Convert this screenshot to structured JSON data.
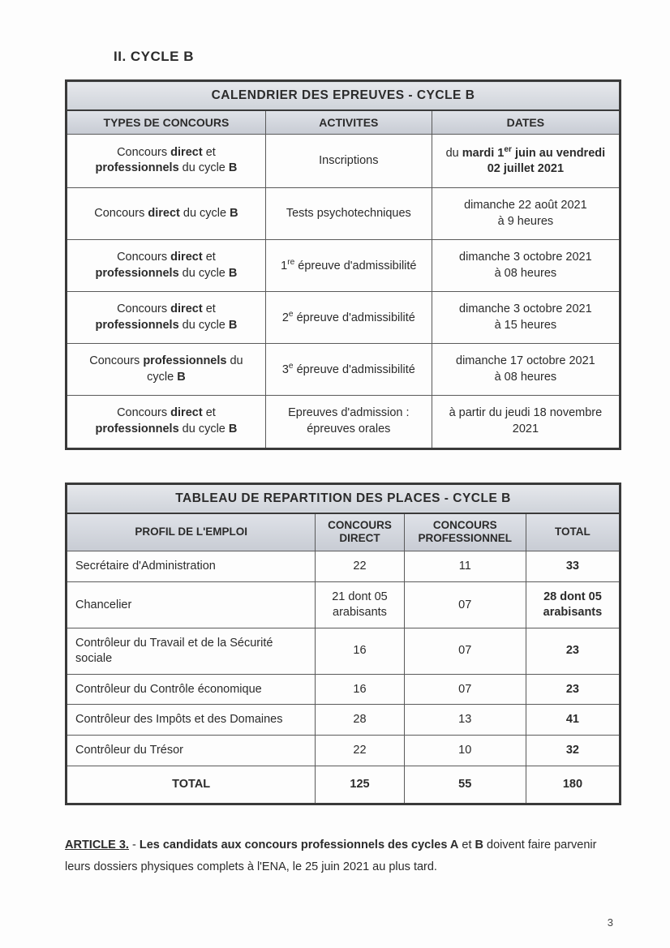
{
  "section_title": "II. CYCLE B",
  "calendar": {
    "title": "CALENDRIER DES EPREUVES - CYCLE B",
    "columns": [
      "TYPES DE CONCOURS",
      "ACTIVITES",
      "DATES"
    ],
    "rows": [
      {
        "type_html": "Concours <b>direct</b> et <b>professionnels</b> du cycle <b>B</b>",
        "activity_html": "Inscriptions",
        "date_html": "du <b>mardi 1<sup>er</sup> juin au vendredi 02 juillet 2021</b>"
      },
      {
        "type_html": "Concours <b>direct</b> du cycle <b>B</b>",
        "activity_html": "Tests psychotechniques",
        "date_html": "dimanche 22 août 2021<br>à 9 heures"
      },
      {
        "type_html": "Concours <b>direct</b> et <b>professionnels</b> du cycle <b>B</b>",
        "activity_html": "1<sup>re</sup> épreuve d'admissibilité",
        "date_html": "dimanche 3 octobre 2021<br>à 08 heures"
      },
      {
        "type_html": "Concours <b>direct</b> et <b>professionnels</b> du cycle <b>B</b>",
        "activity_html": "2<sup>e</sup> épreuve d'admissibilité",
        "date_html": "dimanche 3 octobre 2021<br>à 15 heures"
      },
      {
        "type_html": "Concours <b>professionnels</b> du cycle <b>B</b>",
        "activity_html": "3<sup>e</sup> épreuve d'admissibilité",
        "date_html": "dimanche 17 octobre 2021<br>à 08 heures"
      },
      {
        "type_html": "Concours <b>direct</b> et <b>professionnels</b> du cycle <b>B</b>",
        "activity_html": "Epreuves d'admission :<br>épreuves orales",
        "date_html": "à partir du jeudi 18 novembre 2021"
      }
    ]
  },
  "places": {
    "title": "TABLEAU DE REPARTITION DES PLACES - CYCLE B",
    "columns": [
      "PROFIL DE L'EMPLOI",
      "CONCOURS DIRECT",
      "CONCOURS PROFESSIONNEL",
      "TOTAL"
    ],
    "col_widths_pct": [
      45,
      16,
      22,
      17
    ],
    "rows": [
      {
        "profile": "Secrétaire d'Administration",
        "direct": "22",
        "prof": "11",
        "total": "33",
        "total_bold": true
      },
      {
        "profile": "Chancelier",
        "direct": "21 dont 05 arabisants",
        "prof": "07",
        "total": "28 dont 05 arabisants",
        "total_bold": true
      },
      {
        "profile": "Contrôleur du Travail et de la Sécurité sociale",
        "direct": "16",
        "prof": "07",
        "total": "23",
        "total_bold": true
      },
      {
        "profile": "Contrôleur du Contrôle économique",
        "direct": "16",
        "prof": "07",
        "total": "23",
        "total_bold": true
      },
      {
        "profile": "Contrôleur des Impôts et des Domaines",
        "direct": "28",
        "prof": "13",
        "total": "41",
        "total_bold": true
      },
      {
        "profile": "Contrôleur du Trésor",
        "direct": "22",
        "prof": "10",
        "total": "32",
        "total_bold": true
      }
    ],
    "total_row": {
      "label": "TOTAL",
      "direct": "125",
      "prof": "55",
      "total": "180"
    }
  },
  "article": {
    "lead": "ARTICLE 3.",
    "body_html": " - <b>Les candidats aux concours professionnels des cycles A</b> et <b>B</b> doivent faire parvenir leurs dossiers physiques complets à l'ENA, le 25 juin 2021 au plus tard."
  },
  "page_number": "3"
}
